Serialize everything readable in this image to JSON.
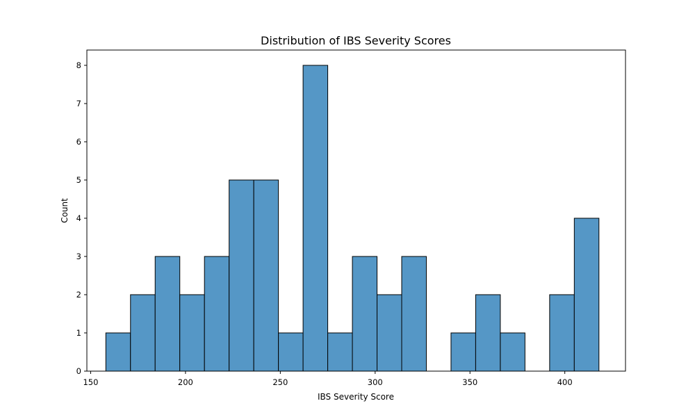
{
  "chart_data": {
    "type": "bar",
    "title": "Distribution of IBS Severity Scores",
    "xlabel": "IBS Severity Score",
    "ylabel": "Count",
    "xlim": [
      148,
      432
    ],
    "ylim": [
      0,
      8.4
    ],
    "x_ticks": [
      "150",
      "200",
      "250",
      "300",
      "350",
      "400"
    ],
    "y_ticks": [
      "0",
      "1",
      "2",
      "3",
      "4",
      "5",
      "6",
      "7",
      "8"
    ],
    "bin_edges": [
      158,
      171,
      184,
      197,
      210,
      223,
      236,
      249,
      262,
      275,
      288,
      301,
      314,
      327,
      340,
      353,
      366,
      379,
      392,
      405,
      418
    ],
    "counts": [
      1,
      2,
      3,
      2,
      3,
      5,
      5,
      1,
      8,
      1,
      3,
      2,
      3,
      0,
      1,
      2,
      1,
      0,
      2,
      4
    ],
    "grid": false,
    "colors": {
      "bar_fill": "#5597c6",
      "bar_edge": "#000000",
      "axis": "#000000"
    }
  }
}
